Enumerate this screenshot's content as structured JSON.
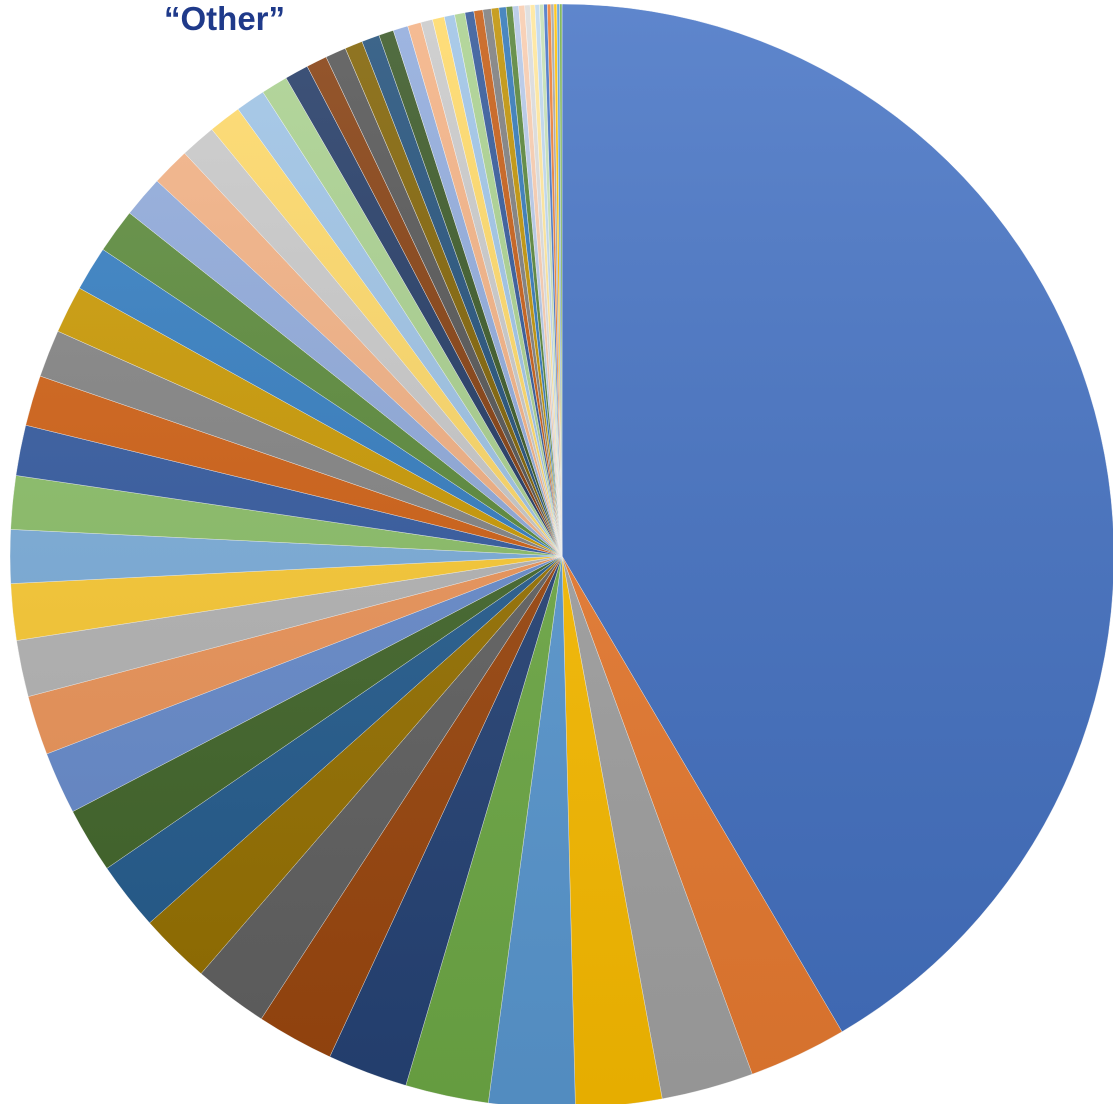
{
  "chart_data": {
    "type": "pie",
    "title": "“Other”",
    "start_angle_deg": 0,
    "direction": "clockwise",
    "slices": [
      {
        "value": 47.8,
        "color": "#4472c4"
      },
      {
        "value": 3.3,
        "color": "#ed7d31"
      },
      {
        "value": 3.1,
        "color": "#a5a5a5"
      },
      {
        "value": 2.9,
        "color": "#ffc000"
      },
      {
        "value": 2.9,
        "color": "#5b9bd5"
      },
      {
        "value": 2.8,
        "color": "#70ad47"
      },
      {
        "value": 2.7,
        "color": "#264478"
      },
      {
        "value": 2.6,
        "color": "#9e480e"
      },
      {
        "value": 2.5,
        "color": "#636363"
      },
      {
        "value": 2.4,
        "color": "#997300"
      },
      {
        "value": 2.3,
        "color": "#255e91"
      },
      {
        "value": 2.2,
        "color": "#43682b"
      },
      {
        "value": 2.1,
        "color": "#698ed0"
      },
      {
        "value": 2.0,
        "color": "#f1975a"
      },
      {
        "value": 1.9,
        "color": "#b7b7b7"
      },
      {
        "value": 1.9,
        "color": "#ffcd33"
      },
      {
        "value": 1.8,
        "color": "#7cafdd"
      },
      {
        "value": 1.8,
        "color": "#8cc168"
      },
      {
        "value": 1.7,
        "color": "#335aa1"
      },
      {
        "value": 1.7,
        "color": "#d26012"
      },
      {
        "value": 1.6,
        "color": "#848484"
      },
      {
        "value": 1.6,
        "color": "#cc9a00"
      },
      {
        "value": 1.5,
        "color": "#327dc2"
      },
      {
        "value": 1.5,
        "color": "#5a8a39"
      },
      {
        "value": 1.4,
        "color": "#8faadc"
      },
      {
        "value": 1.3,
        "color": "#f4b183"
      },
      {
        "value": 1.2,
        "color": "#c9c9c9"
      },
      {
        "value": 1.1,
        "color": "#ffd966"
      },
      {
        "value": 1.0,
        "color": "#9dc3e6"
      },
      {
        "value": 0.9,
        "color": "#a9d18e"
      },
      {
        "value": 0.8,
        "color": "#203864"
      },
      {
        "value": 0.7,
        "color": "#843c0c"
      },
      {
        "value": 0.7,
        "color": "#525252"
      },
      {
        "value": 0.6,
        "color": "#7f6000"
      },
      {
        "value": 0.6,
        "color": "#1f4e79"
      },
      {
        "value": 0.5,
        "color": "#375623"
      },
      {
        "value": 0.5,
        "color": "#8faadc"
      },
      {
        "value": 0.45,
        "color": "#f4b183"
      },
      {
        "value": 0.4,
        "color": "#c9c9c9"
      },
      {
        "value": 0.4,
        "color": "#ffd966"
      },
      {
        "value": 0.35,
        "color": "#9dc3e6"
      },
      {
        "value": 0.35,
        "color": "#a9d18e"
      },
      {
        "value": 0.3,
        "color": "#2f5597"
      },
      {
        "value": 0.3,
        "color": "#c55a11"
      },
      {
        "value": 0.28,
        "color": "#7b7b7b"
      },
      {
        "value": 0.26,
        "color": "#bf9000"
      },
      {
        "value": 0.24,
        "color": "#2e75b6"
      },
      {
        "value": 0.22,
        "color": "#548235"
      },
      {
        "value": 0.2,
        "color": "#b4c7e7"
      },
      {
        "value": 0.2,
        "color": "#f8cbad"
      },
      {
        "value": 0.18,
        "color": "#dbdbdb"
      },
      {
        "value": 0.16,
        "color": "#ffe699"
      },
      {
        "value": 0.15,
        "color": "#bdd7ee"
      },
      {
        "value": 0.14,
        "color": "#c5e0b4"
      },
      {
        "value": 0.12,
        "color": "#4472c4"
      },
      {
        "value": 0.12,
        "color": "#ed7d31"
      },
      {
        "value": 0.1,
        "color": "#a5a5a5"
      },
      {
        "value": 0.1,
        "color": "#ffc000"
      },
      {
        "value": 0.09,
        "color": "#5b9bd5"
      },
      {
        "value": 0.08,
        "color": "#70ad47"
      }
    ]
  }
}
